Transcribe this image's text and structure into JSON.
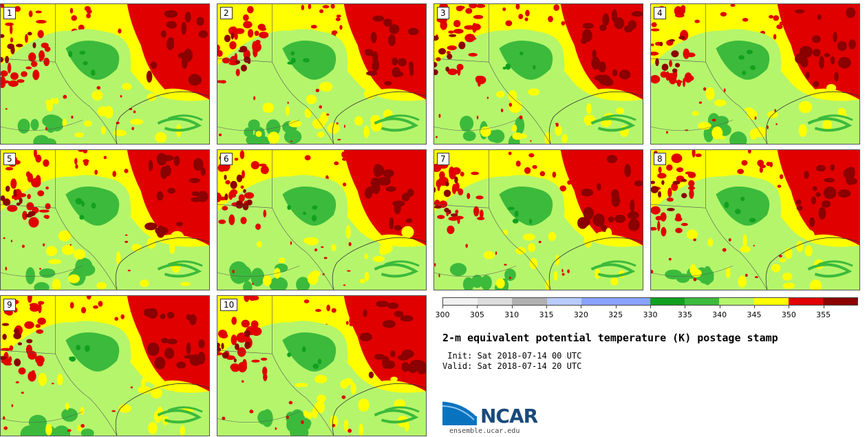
{
  "panels": [
    "1",
    "2",
    "3",
    "4",
    "5",
    "6",
    "7",
    "8",
    "9",
    "10"
  ],
  "colorbar": {
    "colors": [
      "#f0f0f0",
      "#dcdcdc",
      "#b0b0b0",
      "#b8ccff",
      "#8aa2ff",
      "#8aa2ff",
      "#12a01f",
      "#3cba3c",
      "#b4f56c",
      "#ffff00",
      "#e00000",
      "#8b0000"
    ],
    "labels": [
      "300",
      "305",
      "310",
      "315",
      "320",
      "325",
      "330",
      "335",
      "340",
      "345",
      "350",
      "355"
    ]
  },
  "title": "2-m equivalent potential temperature (K) postage stamp",
  "init_line": " Init: Sat 2018-07-14 00 UTC",
  "valid_line": "Valid: Sat 2018-07-14 20 UTC",
  "logo": {
    "text": "NCAR",
    "website": "ensemble.ucar.edu",
    "colors": [
      "#0a73c0",
      "#1a4a7a"
    ]
  },
  "map_colors": {
    "light_green": "#b4f56c",
    "green": "#3cba3c",
    "dark_green": "#12a01f",
    "yellow": "#ffff00",
    "red": "#e00000",
    "dark_red": "#8b0000"
  }
}
